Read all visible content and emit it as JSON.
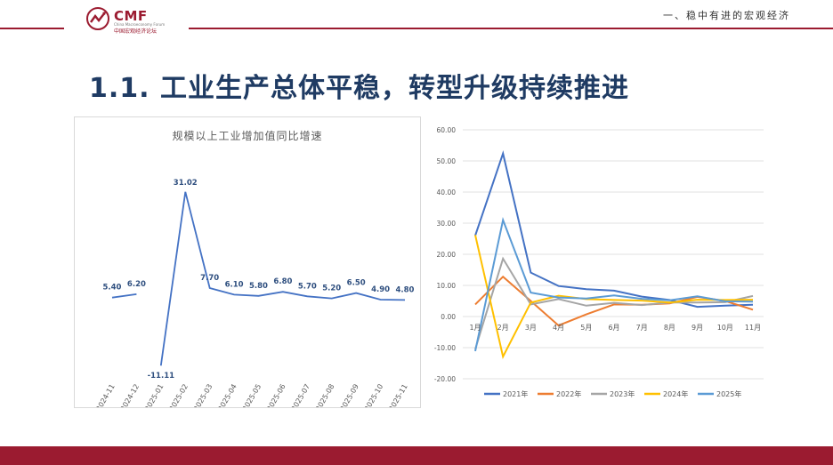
{
  "header": {
    "logo_text": "CMF",
    "logo_en": "China Macroeconomy Forum",
    "logo_cn": "中国宏观经济论坛",
    "section_label": "一、稳中有进的宏观经济"
  },
  "title": "1.1. 工业生产总体平稳，转型升级持续推进",
  "colors": {
    "brand": "#9b1b30",
    "title": "#1f3b63",
    "left_line": "#4472c4"
  },
  "chart_data": [
    {
      "type": "line",
      "title": "规模以上工业增加值同比增速",
      "categories": [
        "2024-11",
        "2024-12",
        "2025-01",
        "2025-02",
        "2025-03",
        "2025-04",
        "2025-05",
        "2025-06",
        "2025-07",
        "2025-08",
        "2025-09",
        "2025-10",
        "2025-11"
      ],
      "values": [
        5.4,
        6.2,
        -11.11,
        31.02,
        7.7,
        6.1,
        5.8,
        6.8,
        5.7,
        5.2,
        6.5,
        4.9,
        4.8
      ],
      "value_labels": [
        "5.40",
        "6.20",
        "-11.11",
        "31.02",
        "7.70",
        "6.10",
        "5.80",
        "6.80",
        "5.70",
        "5.20",
        "6.50",
        "4.90",
        "4.80"
      ],
      "gaps": [
        1
      ],
      "ylim": [
        -13,
        34
      ],
      "grid": false
    },
    {
      "type": "line",
      "categories": [
        "1月",
        "2月",
        "3月",
        "4月",
        "5月",
        "6月",
        "7月",
        "8月",
        "9月",
        "10月",
        "11月"
      ],
      "ylim": [
        -20,
        60
      ],
      "yticks": [
        "-20.00",
        "-10.00",
        "0.00",
        "10.00",
        "20.00",
        "30.00",
        "40.00",
        "50.00",
        "60.00"
      ],
      "ytick_values": [
        -20,
        -10,
        0,
        10,
        20,
        30,
        40,
        50,
        60
      ],
      "grid": true,
      "legend": "bottom",
      "series": [
        {
          "name": "2021年",
          "color": "#4472c4",
          "values": [
            26.0,
            52.4,
            14.1,
            9.8,
            8.8,
            8.3,
            6.4,
            5.3,
            3.1,
            3.5,
            3.8
          ]
        },
        {
          "name": "2022年",
          "color": "#ed7d31",
          "values": [
            3.9,
            12.8,
            5.0,
            -2.9,
            0.7,
            3.9,
            3.8,
            4.2,
            6.3,
            5.0,
            2.2
          ]
        },
        {
          "name": "2023年",
          "color": "#a5a5a5",
          "values": [
            -10.5,
            18.6,
            3.9,
            5.6,
            3.5,
            4.4,
            3.7,
            4.5,
            4.5,
            4.6,
            6.6
          ]
        },
        {
          "name": "2024年",
          "color": "#ffc000",
          "values": [
            26.2,
            -12.9,
            4.5,
            6.7,
            5.6,
            5.3,
            5.1,
            4.5,
            5.4,
            5.3,
            5.4
          ]
        },
        {
          "name": "2025年",
          "color": "#5b9bd5",
          "values": [
            -11.1,
            31.0,
            7.7,
            6.1,
            5.8,
            6.8,
            5.7,
            5.2,
            6.5,
            4.9,
            4.8
          ]
        }
      ]
    }
  ]
}
